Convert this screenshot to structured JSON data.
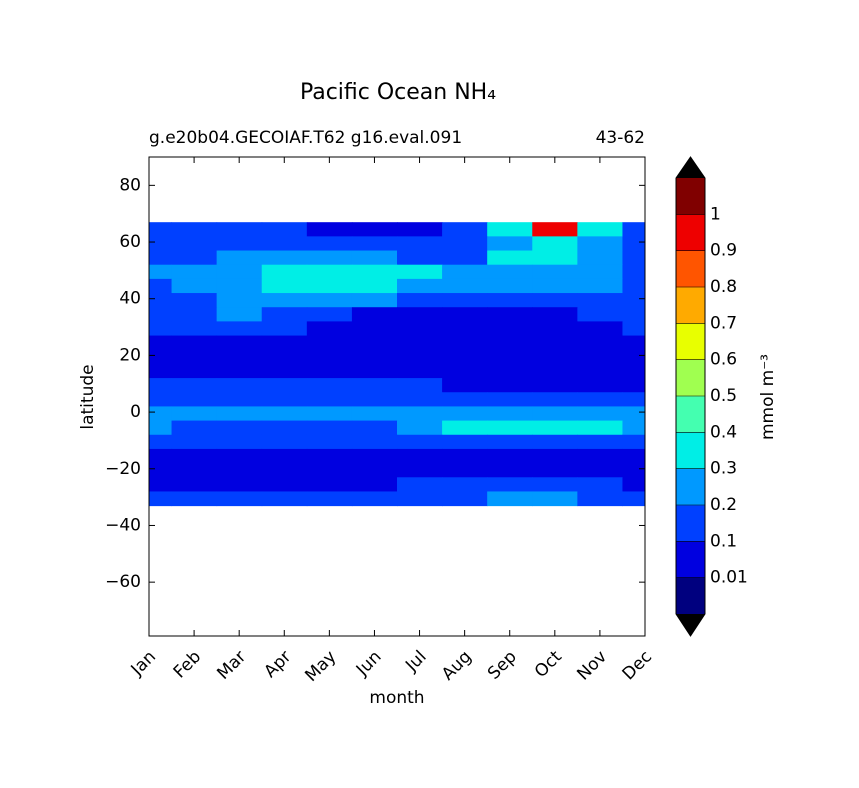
{
  "chart_data": {
    "type": "contourf",
    "title": "Pacific Ocean NH₄",
    "subtitle_left": "g.e20b04.GECOIAF.T62 g16.eval.091",
    "subtitle_right": "43-62",
    "xlabel": "month",
    "ylabel": "latitude",
    "categories": [
      "Jan",
      "Feb",
      "Mar",
      "Apr",
      "May",
      "Jun",
      "Jul",
      "Aug",
      "Sep",
      "Oct",
      "Nov",
      "Dec"
    ],
    "lat": [
      64.5,
      59.5,
      54.5,
      49.5,
      44.5,
      39.5,
      34.5,
      29.5,
      24.5,
      19.5,
      14.5,
      9.5,
      4.5,
      -0.5,
      -5.5,
      -10.5,
      -15.5,
      -20.5,
      -25.5,
      -30.5
    ],
    "z": [
      [
        0.15,
        0.15,
        0.15,
        0.15,
        0.05,
        0.05,
        0.05,
        0.15,
        0.35,
        0.95,
        0.35,
        0.15
      ],
      [
        0.15,
        0.15,
        0.15,
        0.15,
        0.15,
        0.15,
        0.15,
        0.15,
        0.25,
        0.35,
        0.25,
        0.15
      ],
      [
        0.15,
        0.15,
        0.25,
        0.25,
        0.25,
        0.25,
        0.15,
        0.15,
        0.35,
        0.35,
        0.25,
        0.15
      ],
      [
        0.25,
        0.25,
        0.25,
        0.35,
        0.35,
        0.35,
        0.35,
        0.25,
        0.25,
        0.25,
        0.25,
        0.15
      ],
      [
        0.15,
        0.25,
        0.25,
        0.35,
        0.35,
        0.35,
        0.25,
        0.25,
        0.25,
        0.25,
        0.25,
        0.15
      ],
      [
        0.15,
        0.15,
        0.25,
        0.25,
        0.25,
        0.25,
        0.15,
        0.15,
        0.15,
        0.15,
        0.15,
        0.15
      ],
      [
        0.15,
        0.15,
        0.25,
        0.15,
        0.15,
        0.05,
        0.05,
        0.05,
        0.05,
        0.05,
        0.15,
        0.15
      ],
      [
        0.15,
        0.15,
        0.15,
        0.15,
        0.05,
        0.05,
        0.05,
        0.05,
        0.05,
        0.05,
        0.05,
        0.15
      ],
      [
        0.05,
        0.05,
        0.05,
        0.05,
        0.05,
        0.05,
        0.05,
        0.05,
        0.05,
        0.05,
        0.05,
        0.05
      ],
      [
        0.05,
        0.05,
        0.05,
        0.05,
        0.05,
        0.05,
        0.05,
        0.05,
        0.05,
        0.05,
        0.05,
        0.05
      ],
      [
        0.05,
        0.05,
        0.05,
        0.05,
        0.05,
        0.05,
        0.05,
        0.05,
        0.05,
        0.05,
        0.05,
        0.05
      ],
      [
        0.15,
        0.15,
        0.15,
        0.15,
        0.15,
        0.15,
        0.15,
        0.05,
        0.05,
        0.05,
        0.05,
        0.05
      ],
      [
        0.15,
        0.15,
        0.15,
        0.15,
        0.15,
        0.15,
        0.15,
        0.15,
        0.15,
        0.15,
        0.15,
        0.15
      ],
      [
        0.25,
        0.25,
        0.25,
        0.25,
        0.25,
        0.25,
        0.25,
        0.25,
        0.25,
        0.25,
        0.25,
        0.25
      ],
      [
        0.25,
        0.15,
        0.15,
        0.15,
        0.15,
        0.15,
        0.25,
        0.35,
        0.35,
        0.35,
        0.35,
        0.25
      ],
      [
        0.15,
        0.15,
        0.15,
        0.15,
        0.15,
        0.15,
        0.15,
        0.15,
        0.15,
        0.15,
        0.15,
        0.15
      ],
      [
        0.05,
        0.05,
        0.05,
        0.05,
        0.05,
        0.05,
        0.05,
        0.05,
        0.05,
        0.05,
        0.05,
        0.05
      ],
      [
        0.05,
        0.05,
        0.05,
        0.05,
        0.05,
        0.05,
        0.05,
        0.05,
        0.05,
        0.05,
        0.05,
        0.05
      ],
      [
        0.05,
        0.05,
        0.05,
        0.05,
        0.05,
        0.05,
        0.15,
        0.15,
        0.15,
        0.15,
        0.15,
        0.05
      ],
      [
        0.15,
        0.15,
        0.15,
        0.15,
        0.15,
        0.15,
        0.15,
        0.15,
        0.25,
        0.25,
        0.15,
        0.15
      ]
    ],
    "ylim": [
      -79,
      90
    ],
    "yticks": [
      80,
      60,
      40,
      20,
      0,
      {
        "value": -20,
        "label": "−20"
      },
      {
        "value": -40,
        "label": "−40"
      },
      {
        "value": -60,
        "label": "−60"
      }
    ],
    "colorbar_label": "mmol m⁻³",
    "colorbar_ticks": [
      0.01,
      0.1,
      0.2,
      0.3,
      0.4,
      0.5,
      0.6,
      0.7,
      0.8,
      0.9,
      1
    ],
    "colors": [
      "#00007f",
      "#0000e0",
      "#0040ff",
      "#0099ff",
      "#00eee6",
      "#44ffb0",
      "#a0ff50",
      "#e8ff00",
      "#ffaa00",
      "#ff5500",
      "#ee0000",
      "#800000"
    ]
  }
}
